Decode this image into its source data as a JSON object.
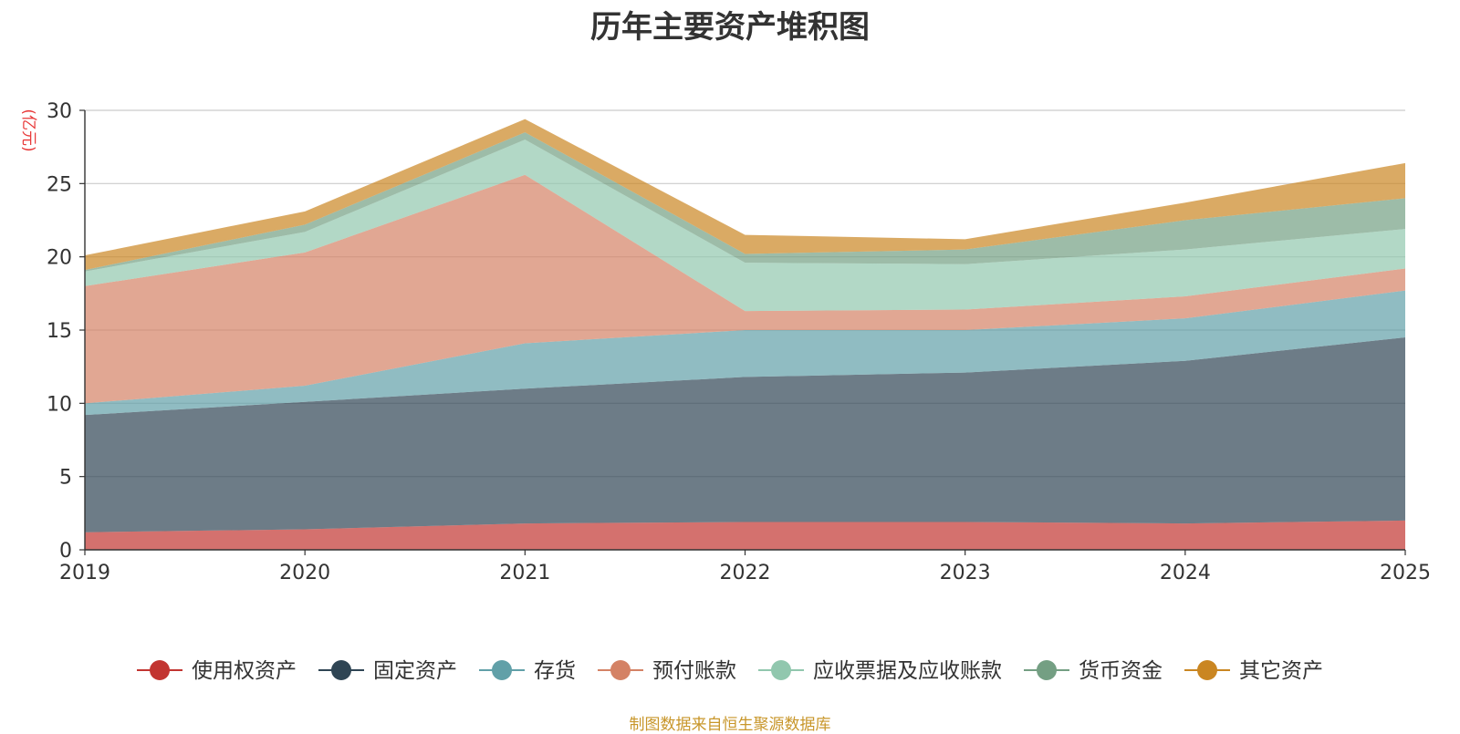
{
  "chart_data": {
    "type": "area",
    "stacked": true,
    "title": "历年主要资产堆积图",
    "ylabel": "(亿元)",
    "xlabel": "",
    "x": [
      "2019",
      "2020",
      "2021",
      "2022",
      "2023",
      "2024",
      "2025"
    ],
    "ylim": [
      0,
      30
    ],
    "yticks": [
      0,
      5,
      10,
      15,
      20,
      25,
      30
    ],
    "grid": true,
    "legend_position": "bottom",
    "series": [
      {
        "name": "使用权资产",
        "color": "#c23531",
        "values": [
          1.2,
          1.4,
          1.8,
          1.9,
          1.9,
          1.8,
          2.0
        ]
      },
      {
        "name": "固定资产",
        "color": "#2f4554",
        "values": [
          8.0,
          8.7,
          9.2,
          9.9,
          10.2,
          11.1,
          12.5
        ]
      },
      {
        "name": "存货",
        "color": "#61a0a8",
        "values": [
          0.8,
          1.1,
          3.1,
          3.2,
          2.9,
          2.9,
          3.2
        ]
      },
      {
        "name": "预付账款",
        "color": "#d48265",
        "values": [
          8.0,
          9.1,
          11.5,
          1.3,
          1.4,
          1.5,
          1.5
        ]
      },
      {
        "name": "应收票据及应收账款",
        "color": "#91c7ae",
        "values": [
          1.0,
          1.4,
          2.4,
          3.3,
          3.1,
          3.2,
          2.7
        ]
      },
      {
        "name": "货币资金",
        "color": "#749f83",
        "values": [
          0.1,
          0.5,
          0.5,
          0.6,
          1.0,
          2.0,
          2.1
        ]
      },
      {
        "name": "其它资产",
        "color": "#ca8622",
        "values": [
          1.0,
          0.9,
          0.9,
          1.3,
          0.7,
          1.2,
          2.4
        ]
      }
    ],
    "source_note": "制图数据来自恒生聚源数据库"
  }
}
